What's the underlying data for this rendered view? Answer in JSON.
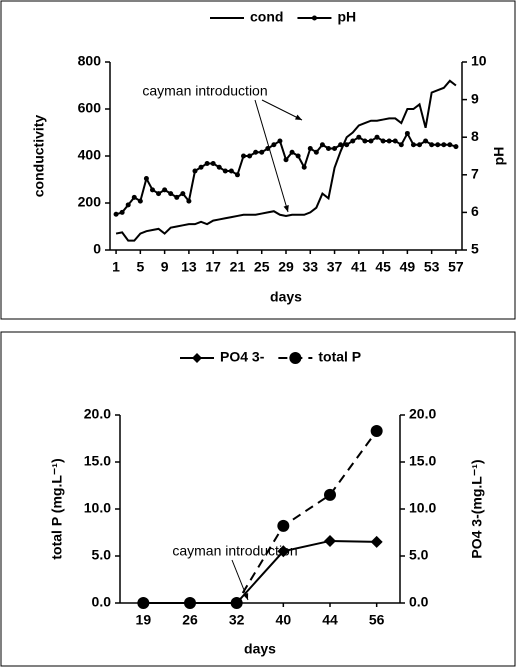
{
  "chart_data": [
    {
      "type": "line",
      "x": [
        1,
        2,
        3,
        4,
        5,
        6,
        7,
        8,
        9,
        10,
        11,
        12,
        13,
        14,
        15,
        16,
        17,
        18,
        19,
        20,
        21,
        22,
        23,
        24,
        25,
        26,
        27,
        28,
        29,
        30,
        31,
        32,
        33,
        34,
        35,
        36,
        37,
        38,
        39,
        40,
        41,
        42,
        43,
        44,
        45,
        46,
        47,
        48,
        49,
        50,
        51,
        52,
        53,
        54,
        55,
        56,
        57
      ],
      "xlim": [
        0,
        58
      ],
      "xticks": [
        1,
        5,
        9,
        13,
        17,
        21,
        25,
        29,
        33,
        37,
        41,
        45,
        49,
        53,
        57
      ],
      "ylim": [
        0,
        800
      ],
      "yticks": [
        0,
        200,
        400,
        600,
        800
      ],
      "y2lim": [
        5,
        10
      ],
      "y2ticks": [
        5,
        6,
        7,
        8,
        9,
        10
      ],
      "xlabel": "days",
      "ylabel": "conductivity",
      "y2label": "pH",
      "annotations": [
        "cayman introduction"
      ],
      "series": [
        {
          "name": "cond",
          "color": "#000000",
          "marker": "none",
          "dash": false,
          "values": [
            70,
            75,
            40,
            40,
            70,
            80,
            85,
            90,
            70,
            95,
            100,
            105,
            110,
            110,
            120,
            110,
            125,
            130,
            135,
            140,
            145,
            150,
            150,
            150,
            155,
            160,
            165,
            150,
            145,
            150,
            150,
            150,
            160,
            180,
            240,
            220,
            350,
            420,
            480,
            500,
            530,
            540,
            550,
            550,
            555,
            560,
            560,
            540,
            600,
            600,
            620,
            520,
            670,
            680,
            690,
            720,
            700
          ]
        },
        {
          "name": "pH",
          "color": "#000000",
          "marker": "circle",
          "dash": false,
          "axis": "y2",
          "values": [
            5.95,
            6.0,
            6.2,
            6.4,
            6.3,
            6.9,
            6.6,
            6.5,
            6.6,
            6.5,
            6.4,
            6.5,
            6.3,
            7.1,
            7.2,
            7.3,
            7.3,
            7.2,
            7.1,
            7.1,
            7.0,
            7.5,
            7.5,
            7.6,
            7.6,
            7.7,
            7.8,
            7.9,
            7.4,
            7.6,
            7.5,
            7.2,
            7.7,
            7.6,
            7.8,
            7.7,
            7.7,
            7.8,
            7.8,
            7.9,
            8.0,
            7.9,
            7.9,
            8.0,
            7.9,
            7.9,
            7.9,
            7.8,
            8.1,
            7.8,
            7.8,
            7.9,
            7.8,
            7.8,
            7.8,
            7.8,
            7.75
          ]
        }
      ]
    },
    {
      "type": "line",
      "categories": [
        "19",
        "26",
        "32",
        "40",
        "44",
        "56"
      ],
      "ylim": [
        0,
        20
      ],
      "yticks": [
        {
          "value": 0,
          "label": "0.0"
        },
        {
          "value": 5,
          "label": "5.0"
        },
        {
          "value": 10,
          "label": "10.0"
        },
        {
          "value": 15,
          "label": "15.0"
        },
        {
          "value": 20,
          "label": "20.0"
        }
      ],
      "y2lim": [
        0,
        20
      ],
      "y2ticks": [
        {
          "value": 0,
          "label": "0.0"
        },
        {
          "value": 5,
          "label": "5.0"
        },
        {
          "value": 10,
          "label": "10.0"
        },
        {
          "value": 15,
          "label": "15.0"
        },
        {
          "value": 20,
          "label": "20.0"
        }
      ],
      "xlabel": "days",
      "ylabel": "total P (mg.L⁻¹)",
      "y2label": "PO4 3-(mg.L⁻¹)",
      "annotations": [
        "cayman introduction"
      ],
      "series": [
        {
          "name": "PO4 3-",
          "color": "#000000",
          "marker": "diamond",
          "dash": false,
          "axis": "y2",
          "values": [
            0,
            0,
            0,
            5.5,
            6.6,
            6.5
          ]
        },
        {
          "name": "total P",
          "color": "#000000",
          "marker": "circle",
          "dash": true,
          "values": [
            0,
            0,
            0,
            8.2,
            11.5,
            18.3
          ]
        }
      ]
    }
  ]
}
